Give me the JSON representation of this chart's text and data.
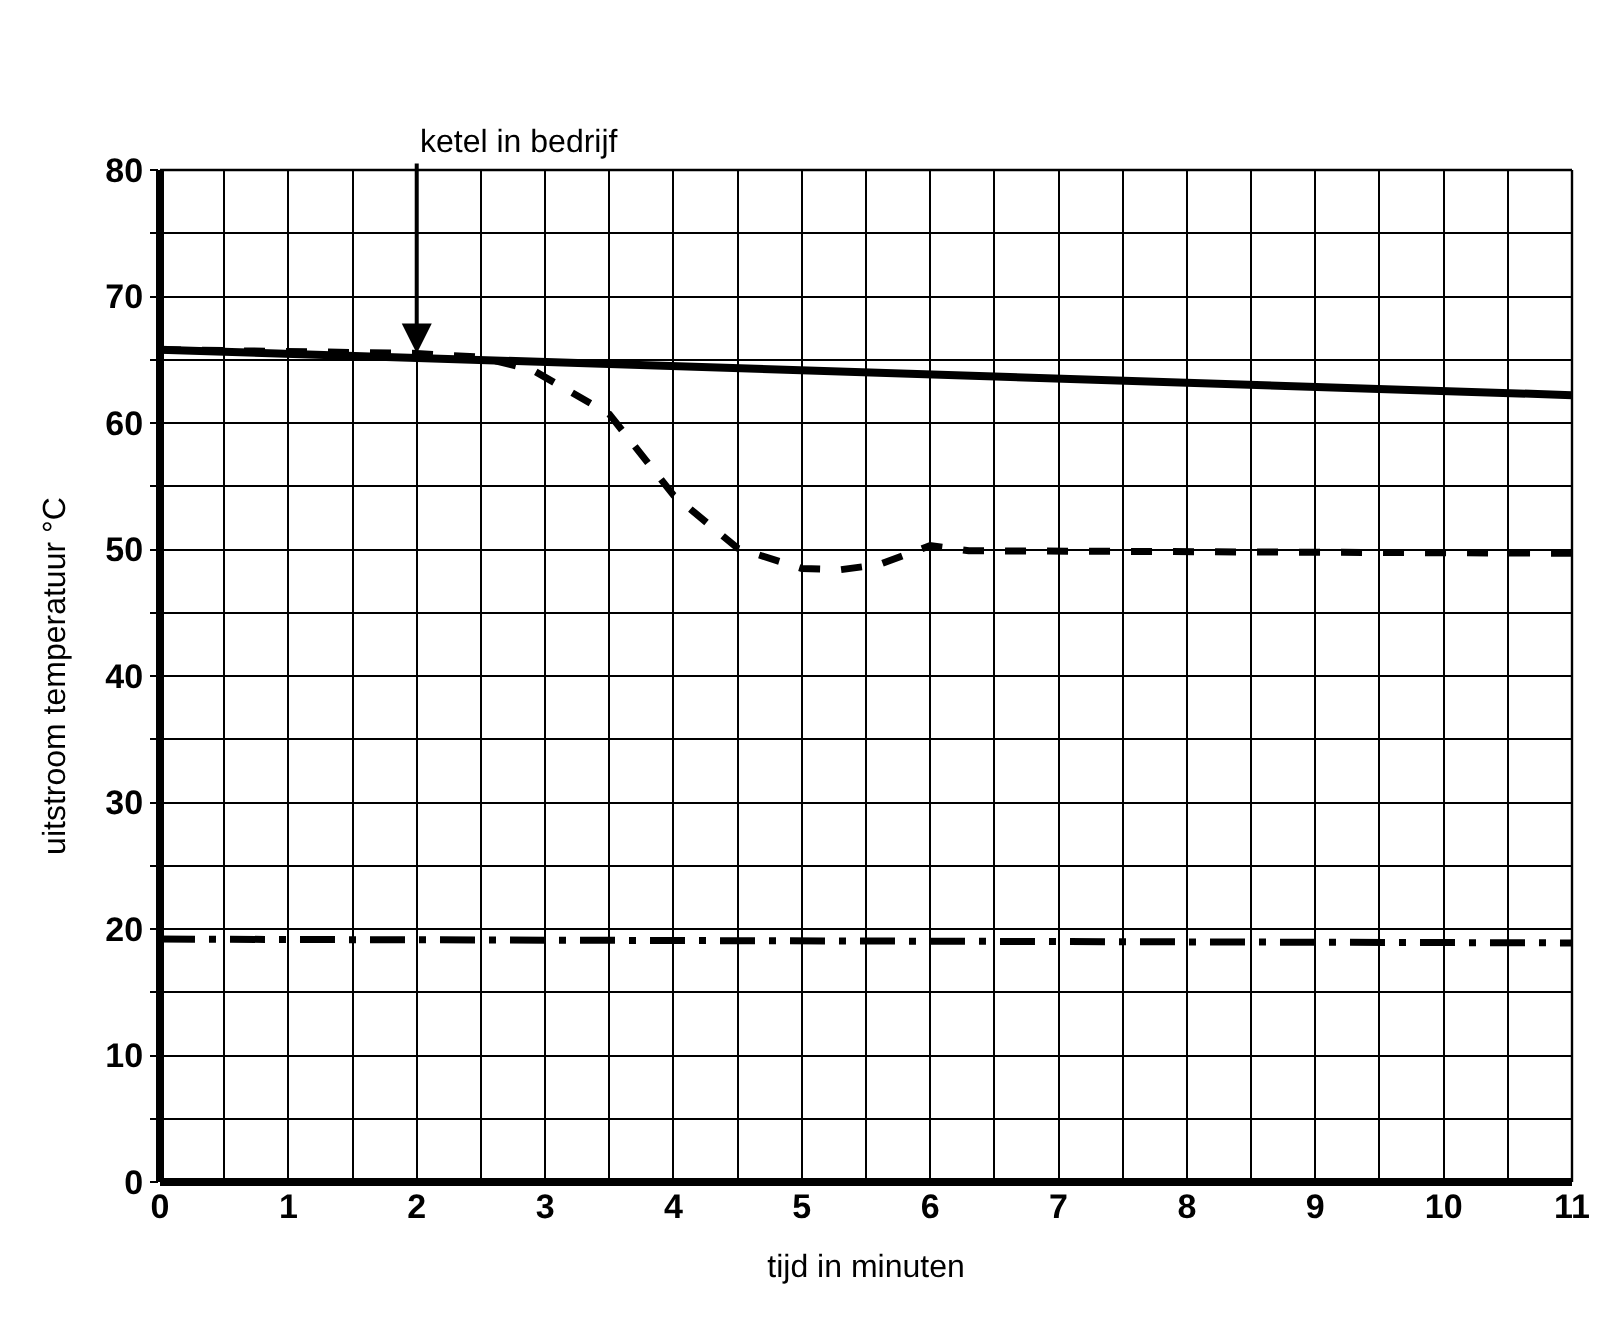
{
  "chart_data": {
    "type": "line",
    "xlabel": "tijd in minuten",
    "ylabel": "uitstroom temperatuur °C",
    "xlim": [
      0,
      11
    ],
    "ylim": [
      0,
      80
    ],
    "xticks": [
      0,
      {
        "value": 0.5,
        "label": null
      },
      1,
      {
        "value": 1.5,
        "label": null
      },
      2,
      {
        "value": 2.5,
        "label": null
      },
      3,
      {
        "value": 3.5,
        "label": null
      },
      4,
      {
        "value": 4.5,
        "label": null
      },
      5,
      {
        "value": 5.5,
        "label": null
      },
      6,
      {
        "value": 6.5,
        "label": null
      },
      7,
      {
        "value": 7.5,
        "label": null
      },
      8,
      {
        "value": 8.5,
        "label": null
      },
      9,
      {
        "value": 9.5,
        "label": null
      },
      10,
      {
        "value": 10.5,
        "label": null
      },
      11
    ],
    "yticks": [
      0,
      {
        "value": 5,
        "label": null
      },
      10,
      {
        "value": 15,
        "label": null
      },
      20,
      {
        "value": 25,
        "label": null
      },
      30,
      {
        "value": 35,
        "label": null
      },
      40,
      {
        "value": 45,
        "label": null
      },
      50,
      {
        "value": 55,
        "label": null
      },
      60,
      {
        "value": 65,
        "label": null
      },
      70,
      {
        "value": 75,
        "label": null
      },
      80
    ],
    "grid": true,
    "series": [
      {
        "color": "#000000",
        "line_style": "solid",
        "x": [
          0,
          11
        ],
        "values": [
          65.8,
          62.2
        ]
      },
      {
        "color": "#000000",
        "line_style": "dashed",
        "x": [
          0,
          2,
          2.5,
          2.9,
          3.5,
          4,
          4.5,
          5,
          5.3,
          5.6,
          6,
          6.3,
          11
        ],
        "values": [
          65.8,
          65.5,
          65.2,
          64.2,
          60.7,
          54.3,
          50.1,
          48.5,
          48.4,
          48.8,
          50.3,
          49.9,
          49.7
        ]
      },
      {
        "color": "#000000",
        "line_style": "dashdot",
        "x": [
          0,
          11
        ],
        "values": [
          19.2,
          18.9
        ]
      }
    ],
    "annotations": [
      {
        "text": "ketel in bedrijf",
        "x": 2,
        "y": 65.5
      }
    ]
  }
}
